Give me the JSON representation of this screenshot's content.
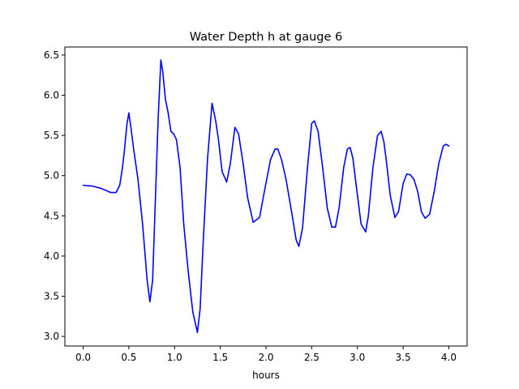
{
  "chart_data": {
    "type": "line",
    "title": "Water Depth h at gauge 6",
    "xlabel": "hours",
    "ylabel": "",
    "xlim": [
      -0.2,
      4.2
    ],
    "ylim": [
      2.88,
      6.6
    ],
    "xticks": [
      0.0,
      0.5,
      1.0,
      1.5,
      2.0,
      2.5,
      3.0,
      3.5,
      4.0
    ],
    "xtick_labels": [
      "0.0",
      "0.5",
      "1.0",
      "1.5",
      "2.0",
      "2.5",
      "3.0",
      "3.5",
      "4.0"
    ],
    "yticks": [
      3.0,
      3.5,
      4.0,
      4.5,
      5.0,
      5.5,
      6.0,
      6.5
    ],
    "ytick_labels": [
      "3.0",
      "3.5",
      "4.0",
      "4.5",
      "5.0",
      "5.5",
      "6.0",
      "6.5"
    ],
    "grid": false,
    "series": [
      {
        "color": "#0000ff",
        "x": [
          0.0,
          0.1,
          0.2,
          0.3,
          0.36,
          0.4,
          0.43,
          0.45,
          0.48,
          0.5,
          0.52,
          0.55,
          0.6,
          0.65,
          0.7,
          0.73,
          0.76,
          0.79,
          0.82,
          0.85,
          0.87,
          0.9,
          0.93,
          0.96,
          0.99,
          1.02,
          1.06,
          1.1,
          1.15,
          1.2,
          1.25,
          1.28,
          1.31,
          1.36,
          1.41,
          1.45,
          1.48,
          1.52,
          1.57,
          1.61,
          1.66,
          1.7,
          1.75,
          1.8,
          1.86,
          1.93,
          1.99,
          2.05,
          2.1,
          2.13,
          2.17,
          2.22,
          2.28,
          2.33,
          2.36,
          2.4,
          2.45,
          2.5,
          2.53,
          2.57,
          2.62,
          2.67,
          2.72,
          2.76,
          2.8,
          2.85,
          2.89,
          2.92,
          2.95,
          2.99,
          3.04,
          3.09,
          3.12,
          3.17,
          3.22,
          3.26,
          3.29,
          3.32,
          3.36,
          3.41,
          3.45,
          3.5,
          3.54,
          3.58,
          3.62,
          3.66,
          3.7,
          3.74,
          3.79,
          3.84,
          3.89,
          3.94,
          3.97,
          4.0
        ],
        "y": [
          4.88,
          4.87,
          4.84,
          4.79,
          4.79,
          4.88,
          5.1,
          5.3,
          5.65,
          5.78,
          5.62,
          5.35,
          4.95,
          4.4,
          3.7,
          3.43,
          3.7,
          4.7,
          5.7,
          6.44,
          6.3,
          5.95,
          5.78,
          5.55,
          5.52,
          5.45,
          5.1,
          4.4,
          3.8,
          3.3,
          3.05,
          3.35,
          4.1,
          5.2,
          5.9,
          5.68,
          5.45,
          5.05,
          4.92,
          5.15,
          5.6,
          5.52,
          5.15,
          4.72,
          4.42,
          4.48,
          4.85,
          5.2,
          5.33,
          5.33,
          5.2,
          4.95,
          4.55,
          4.2,
          4.12,
          4.35,
          5.05,
          5.65,
          5.68,
          5.55,
          5.1,
          4.6,
          4.36,
          4.36,
          4.6,
          5.1,
          5.33,
          5.35,
          5.22,
          4.85,
          4.4,
          4.3,
          4.5,
          5.1,
          5.5,
          5.55,
          5.42,
          5.15,
          4.75,
          4.48,
          4.55,
          4.9,
          5.02,
          5.01,
          4.95,
          4.8,
          4.55,
          4.47,
          4.52,
          4.8,
          5.15,
          5.37,
          5.39,
          5.37
        ]
      }
    ]
  }
}
